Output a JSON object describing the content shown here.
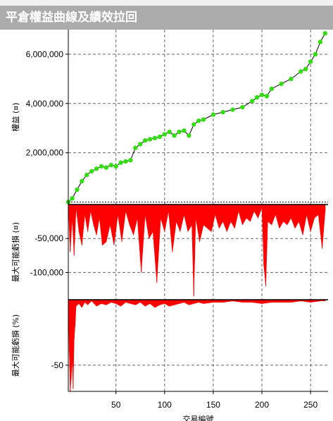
{
  "window": {
    "title": "平倉權益曲線及績效拉回"
  },
  "chart_data": [
    {
      "type": "line",
      "id": "equity",
      "ylabel": "權益 (¤)",
      "ylim": [
        -100000,
        7000000
      ],
      "yticks": [
        2000000,
        4000000,
        6000000
      ],
      "ytick_labels": [
        "2,000,000",
        "4,000,000",
        "6,000,000"
      ],
      "grid": true,
      "x": [
        1,
        5,
        10,
        15,
        20,
        25,
        30,
        35,
        40,
        45,
        50,
        55,
        60,
        65,
        70,
        75,
        80,
        85,
        90,
        95,
        100,
        105,
        110,
        115,
        120,
        125,
        130,
        135,
        140,
        150,
        160,
        170,
        180,
        190,
        195,
        200,
        205,
        210,
        220,
        230,
        240,
        245,
        250,
        255,
        260,
        265
      ],
      "values": [
        0,
        150000,
        500000,
        850000,
        1100000,
        1250000,
        1350000,
        1450000,
        1400000,
        1500000,
        1450000,
        1600000,
        1650000,
        1700000,
        2200000,
        2350000,
        2500000,
        2550000,
        2600000,
        2650000,
        2750000,
        2850000,
        2700000,
        2850000,
        2900000,
        2700000,
        3150000,
        3300000,
        3350000,
        3550000,
        3650000,
        3750000,
        3850000,
        4100000,
        4250000,
        4350000,
        4300000,
        4600000,
        4800000,
        5000000,
        5300000,
        5400000,
        5700000,
        6000000,
        6500000,
        6850000
      ]
    },
    {
      "type": "area",
      "id": "drawdown_abs",
      "ylabel": "最大可能虧損 (¤)",
      "ylim": [
        -140000,
        0
      ],
      "yticks": [
        -50000,
        -100000
      ],
      "ytick_labels": [
        "-50,000",
        "-100,000"
      ],
      "grid": true,
      "x": [
        1,
        3,
        5,
        7,
        9,
        12,
        15,
        18,
        21,
        24,
        27,
        30,
        33,
        36,
        40,
        44,
        48,
        52,
        56,
        60,
        64,
        68,
        72,
        76,
        80,
        84,
        88,
        92,
        96,
        100,
        104,
        108,
        112,
        116,
        120,
        124,
        128,
        130,
        132,
        136,
        140,
        144,
        148,
        152,
        156,
        160,
        164,
        168,
        172,
        176,
        180,
        184,
        188,
        192,
        196,
        200,
        202,
        204,
        206,
        210,
        214,
        218,
        222,
        226,
        230,
        234,
        238,
        242,
        246,
        250,
        254,
        258,
        262,
        265
      ],
      "values": [
        0,
        -70000,
        -20000,
        -75000,
        -5000,
        -40000,
        -60000,
        -15000,
        -40000,
        -10000,
        -30000,
        -45000,
        -20000,
        -60000,
        -55000,
        -30000,
        -60000,
        -15000,
        -55000,
        -10000,
        -30000,
        -45000,
        -20000,
        -100000,
        -15000,
        -50000,
        -40000,
        -115000,
        -20000,
        -40000,
        -10000,
        -70000,
        -25000,
        -40000,
        -15000,
        -40000,
        -30000,
        -135000,
        -20000,
        -55000,
        -30000,
        -35000,
        -40000,
        -15000,
        -35000,
        -25000,
        -40000,
        -25000,
        -35000,
        -10000,
        -30000,
        -20000,
        -25000,
        -10000,
        -20000,
        -5000,
        -90000,
        -120000,
        -25000,
        -30000,
        -15000,
        -35000,
        -25000,
        -30000,
        -20000,
        -35000,
        -25000,
        -45000,
        -15000,
        -40000,
        -20000,
        -15000,
        -65000,
        -10000
      ]
    },
    {
      "type": "area",
      "id": "drawdown_pct",
      "ylabel": "最大可能虧損 (%)",
      "ylim": [
        -70,
        0
      ],
      "yticks": [
        -50
      ],
      "ytick_labels": [
        "-50"
      ],
      "grid": true,
      "x": [
        1,
        2,
        3,
        4,
        5,
        6,
        7,
        8,
        9,
        12,
        15,
        18,
        21,
        25,
        30,
        35,
        40,
        45,
        50,
        55,
        60,
        65,
        70,
        75,
        80,
        85,
        90,
        95,
        100,
        105,
        110,
        115,
        120,
        125,
        130,
        135,
        140,
        150,
        160,
        170,
        180,
        190,
        200,
        210,
        220,
        230,
        240,
        250,
        260,
        265
      ],
      "values": [
        0,
        -40,
        -70,
        -60,
        -45,
        -68,
        -30,
        -20,
        -5,
        -3,
        -6,
        -2,
        -4,
        -1,
        -5,
        -3,
        -4,
        -2,
        -3,
        -5,
        -2,
        -3,
        -4,
        -2,
        -5,
        -3,
        -6,
        -4,
        -3,
        -5,
        -4,
        -3,
        -2,
        -4,
        -3,
        -2,
        -3,
        -2,
        -2,
        -1,
        -2,
        -2,
        -3,
        -2,
        -2,
        -2,
        -1,
        -2,
        -1,
        -1
      ]
    }
  ],
  "x_axis": {
    "label": "交易編號",
    "xlim": [
      1,
      268
    ],
    "ticks": [
      50,
      100,
      150,
      200,
      250
    ],
    "tick_labels": [
      "50",
      "100",
      "150",
      "200",
      "250"
    ]
  },
  "colors": {
    "equity_markers": "#33dd11",
    "equity_line": "#000000",
    "drawdown_fill": "#ff0000",
    "grid": "#666666",
    "title_bar": "#ababab"
  }
}
